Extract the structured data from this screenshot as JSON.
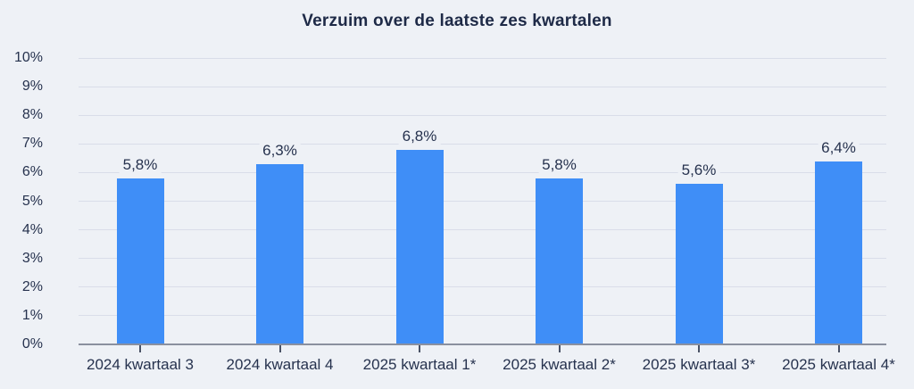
{
  "page": {
    "background": "#eef1f6"
  },
  "chart_data": {
    "type": "bar",
    "title": "Verzuim over de laatste zes kwartalen",
    "categories": [
      "2024 kwartaal 3",
      "2024 kwartaal 4",
      "2025 kwartaal 1*",
      "2025 kwartaal 2*",
      "2025 kwartaal 3*",
      "2025 kwartaal 4*"
    ],
    "values": [
      5.8,
      6.3,
      6.8,
      5.8,
      5.6,
      6.4
    ],
    "value_labels": [
      "5,8%",
      "6,3%",
      "6,8%",
      "5,8%",
      "5,6%",
      "6,4%"
    ],
    "xlabel": "",
    "ylabel": "",
    "ylim": [
      0,
      10
    ],
    "ytick_step": 1,
    "ytick_labels": [
      "0%",
      "1%",
      "2%",
      "3%",
      "4%",
      "5%",
      "6%",
      "7%",
      "8%",
      "9%",
      "10%"
    ],
    "grid": "horizontal",
    "legend": "none",
    "colors": {
      "bar": "#3f8ef7",
      "background": "#eef1f6",
      "gridline": "#d9dde9",
      "axis_line": "#8a909f",
      "tick": "#4a5265",
      "text": "#26324e",
      "title": "#1e2a47"
    }
  }
}
